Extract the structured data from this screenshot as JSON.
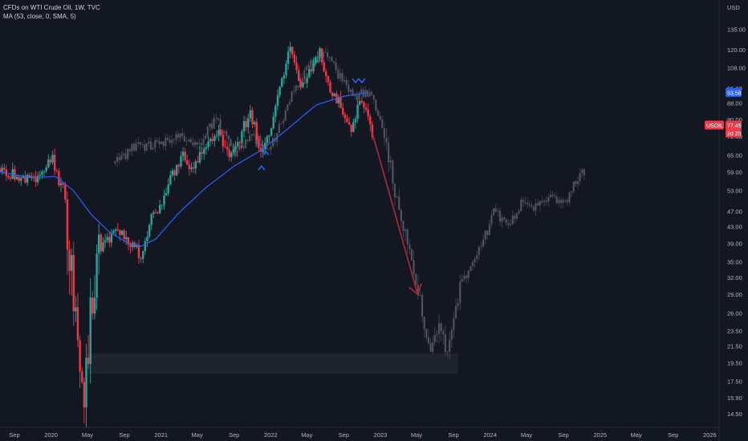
{
  "legend": {
    "title": "CFDs on WTI Crude Oil, 1W, TVC",
    "ma": "MA (53, close, 0, SMA, 5)"
  },
  "currency": "USD",
  "colors": {
    "background": "#131722",
    "up": "#26a69a",
    "down": "#f23645",
    "ma": "#2962ff",
    "ghost": "#5d606b",
    "arrow": "#b22833",
    "marker": "#2962ff",
    "tag_ma": "#2962ff",
    "tag_price": "#f23645"
  },
  "chart_data": {
    "type": "candlestick",
    "title": "CFDs on WTI Crude Oil, 1W, TVC",
    "y_scale": "log",
    "ylim": [
      13.4,
      160
    ],
    "xlim": [
      "2019-07-15",
      "2026-02-01"
    ],
    "y_ticks": [
      14.5,
      15.9,
      17.5,
      19.5,
      21.5,
      23.5,
      26.0,
      29.0,
      32.0,
      35.0,
      39.0,
      43.0,
      47.0,
      53.0,
      59.0,
      65.0,
      72.5,
      80.0,
      88.0,
      96.0,
      108.0,
      120.0,
      135.0
    ],
    "x_ticks": [
      {
        "date": "2019-09-01",
        "label": "Sep"
      },
      {
        "date": "2020-01-01",
        "label": "2020"
      },
      {
        "date": "2020-05-01",
        "label": "May"
      },
      {
        "date": "2020-09-01",
        "label": "Sep"
      },
      {
        "date": "2021-01-01",
        "label": "2021"
      },
      {
        "date": "2021-05-01",
        "label": "May"
      },
      {
        "date": "2021-09-01",
        "label": "Sep"
      },
      {
        "date": "2022-01-01",
        "label": "2022"
      },
      {
        "date": "2022-05-01",
        "label": "May"
      },
      {
        "date": "2022-09-01",
        "label": "Sep"
      },
      {
        "date": "2023-01-01",
        "label": "2023"
      },
      {
        "date": "2023-05-01",
        "label": "May"
      },
      {
        "date": "2023-09-01",
        "label": "Sep"
      },
      {
        "date": "2024-01-01",
        "label": "2024"
      },
      {
        "date": "2024-05-01",
        "label": "May"
      },
      {
        "date": "2024-09-01",
        "label": "Sep"
      },
      {
        "date": "2025-01-01",
        "label": "2025"
      },
      {
        "date": "2025-05-01",
        "label": "May"
      },
      {
        "date": "2025-09-01",
        "label": "Sep"
      },
      {
        "date": "2026-01-01",
        "label": "2026"
      }
    ],
    "price_path": [
      [
        "2019-07-15",
        60.0
      ],
      [
        "2019-09-15",
        57.0
      ],
      [
        "2019-11-15",
        56.5
      ],
      [
        "2020-01-06",
        63.5
      ],
      [
        "2020-01-20",
        58.0
      ],
      [
        "2020-02-15",
        52.0
      ],
      [
        "2020-03-09",
        33.0
      ],
      [
        "2020-03-30",
        21.0
      ],
      [
        "2020-04-20",
        15.0
      ],
      [
        "2020-05-10",
        25.0
      ],
      [
        "2020-06-10",
        38.0
      ],
      [
        "2020-08-15",
        42.0
      ],
      [
        "2020-09-15",
        40.0
      ],
      [
        "2020-10-30",
        36.0
      ],
      [
        "2020-12-01",
        45.0
      ],
      [
        "2021-01-15",
        52.0
      ],
      [
        "2021-03-08",
        65.0
      ],
      [
        "2021-04-15",
        61.0
      ],
      [
        "2021-06-01",
        68.0
      ],
      [
        "2021-07-05",
        75.0
      ],
      [
        "2021-08-20",
        63.0
      ],
      [
        "2021-10-25",
        84.0
      ],
      [
        "2021-12-01",
        65.0
      ],
      [
        "2022-01-15",
        83.0
      ],
      [
        "2022-03-07",
        124.0
      ],
      [
        "2022-04-10",
        95.0
      ],
      [
        "2022-06-10",
        120.0
      ],
      [
        "2022-07-15",
        95.0
      ],
      [
        "2022-08-20",
        88.0
      ],
      [
        "2022-09-26",
        77.0
      ],
      [
        "2022-11-01",
        91.0
      ],
      [
        "2022-12-05",
        72.0
      ]
    ],
    "ghost_path": [
      [
        "2020-08-01",
        62.0
      ],
      [
        "2020-10-01",
        68.0
      ],
      [
        "2021-01-01",
        70.0
      ],
      [
        "2021-03-01",
        73.0
      ],
      [
        "2021-05-01",
        68.0
      ],
      [
        "2021-07-01",
        80.0
      ],
      [
        "2021-09-01",
        66.0
      ],
      [
        "2021-11-01",
        72.0
      ],
      [
        "2022-01-01",
        68.0
      ],
      [
        "2022-03-01",
        88.0
      ],
      [
        "2022-05-01",
        110.0
      ],
      [
        "2022-07-01",
        118.0
      ],
      [
        "2022-08-10",
        105.0
      ],
      [
        "2022-10-01",
        92.0
      ],
      [
        "2022-12-01",
        94.0
      ],
      [
        "2023-01-15",
        75.0
      ],
      [
        "2023-02-15",
        55.0
      ],
      [
        "2023-04-01",
        38.0
      ],
      [
        "2023-05-15",
        27.0
      ],
      [
        "2023-06-15",
        21.5
      ],
      [
        "2023-07-15",
        25.0
      ],
      [
        "2023-08-10",
        20.5
      ],
      [
        "2023-09-20",
        30.0
      ],
      [
        "2023-10-20",
        33.0
      ],
      [
        "2023-12-01",
        38.0
      ],
      [
        "2024-01-15",
        47.0
      ],
      [
        "2024-03-01",
        43.0
      ],
      [
        "2024-04-10",
        49.0
      ],
      [
        "2024-06-01",
        48.0
      ],
      [
        "2024-07-15",
        51.0
      ],
      [
        "2024-09-01",
        49.0
      ],
      [
        "2024-10-15",
        56.0
      ],
      [
        "2024-11-15",
        60.0
      ]
    ],
    "ma_path": [
      [
        "2019-07-15",
        59.0
      ],
      [
        "2019-11-01",
        57.0
      ],
      [
        "2020-01-15",
        57.5
      ],
      [
        "2020-03-15",
        53.0
      ],
      [
        "2020-05-15",
        46.0
      ],
      [
        "2020-07-15",
        41.5
      ],
      [
        "2020-09-15",
        39.0
      ],
      [
        "2020-10-26",
        38.3
      ],
      [
        "2020-12-15",
        40.0
      ],
      [
        "2021-03-01",
        46.5
      ],
      [
        "2021-06-01",
        54.0
      ],
      [
        "2021-09-01",
        61.0
      ],
      [
        "2021-12-01",
        67.0
      ],
      [
        "2022-03-01",
        76.0
      ],
      [
        "2022-06-01",
        87.0
      ],
      [
        "2022-09-01",
        91.5
      ],
      [
        "2022-11-20",
        93.58
      ]
    ],
    "arrow": {
      "from": [
        "2022-12-05",
        74.0
      ],
      "to": [
        "2023-05-05",
        29.0
      ]
    },
    "zone": {
      "from": "2020-05-01",
      "to": "2023-09-15",
      "low": 18.3,
      "high": 20.6
    },
    "markers": [
      {
        "glyph": "^",
        "date": "2021-12-01",
        "value": 60.5
      },
      {
        "glyph": "^",
        "date": "2021-12-15",
        "value": 66.0
      },
      {
        "glyph": "v",
        "date": "2022-10-10",
        "value": 100.0
      },
      {
        "glyph": "v",
        "date": "2022-10-31",
        "value": 100.0
      }
    ],
    "tags": [
      {
        "name": "ma",
        "label": "93.58",
        "value": 93.58,
        "color": "tag_ma"
      },
      {
        "name": "price",
        "label": "77.45",
        "value": 77.45,
        "color": "tag_price",
        "symbol": "USOIL",
        "sub": "2d 2h"
      }
    ]
  }
}
